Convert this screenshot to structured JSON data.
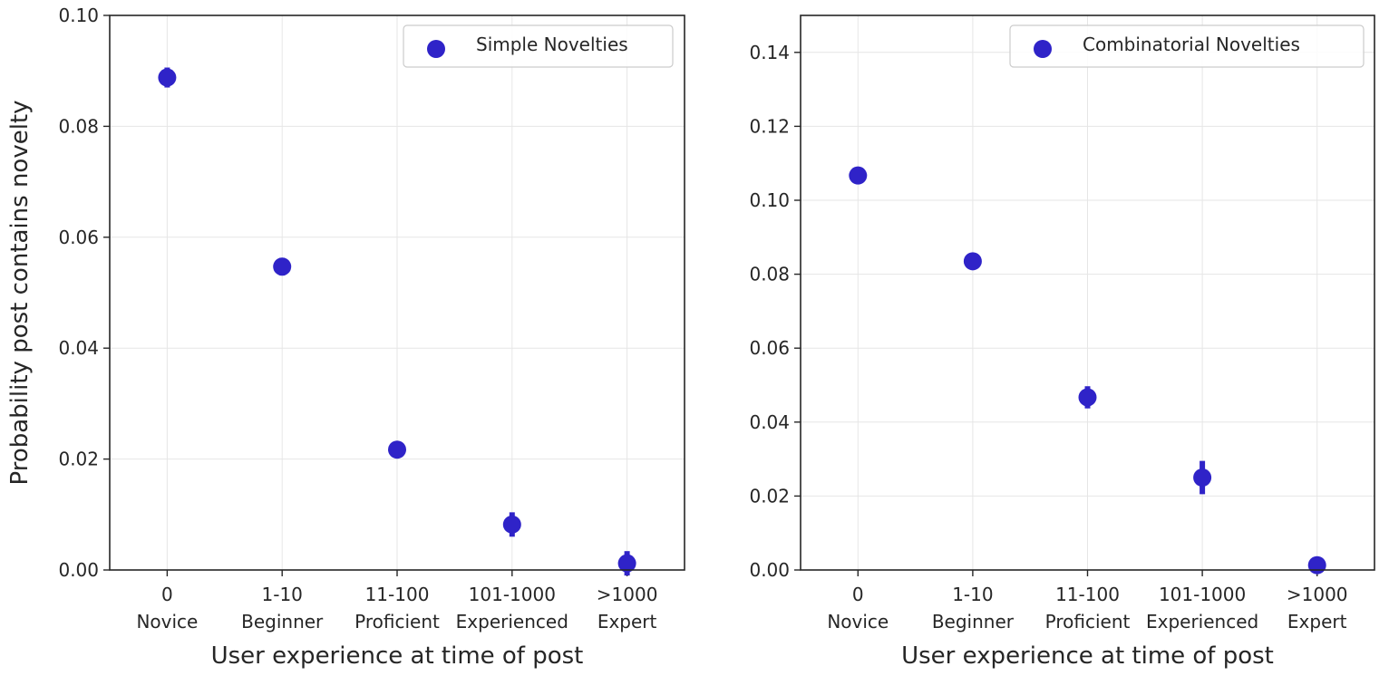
{
  "chart_data": [
    {
      "type": "scatter",
      "title": "",
      "xlabel": "User experience at time of post",
      "ylabel": "Probability post contains novelty",
      "categories": [
        {
          "range": "0",
          "level": "Novice"
        },
        {
          "range": "1-10",
          "level": "Beginner"
        },
        {
          "range": "11-100",
          "level": "Proficient"
        },
        {
          "range": "101-1000",
          "level": "Experienced"
        },
        {
          "range": ">1000",
          "level": "Expert"
        }
      ],
      "ylim": [
        0,
        0.1
      ],
      "yticks": [
        "0.00",
        "0.02",
        "0.04",
        "0.06",
        "0.08",
        "0.10"
      ],
      "grid": true,
      "legend_position": "top-right",
      "series": [
        {
          "name": "Simple Novelties",
          "color": "#2f23c8",
          "values": [
            0.0888,
            0.0547,
            0.0217,
            0.0082,
            0.0012
          ],
          "error": [
            0.0018,
            0.0016,
            0.0014,
            0.0022,
            0.0022
          ]
        }
      ]
    },
    {
      "type": "scatter",
      "title": "",
      "xlabel": "User experience at time of post",
      "ylabel": "",
      "categories": [
        {
          "range": "0",
          "level": "Novice"
        },
        {
          "range": "1-10",
          "level": "Beginner"
        },
        {
          "range": "11-100",
          "level": "Proficient"
        },
        {
          "range": "101-1000",
          "level": "Experienced"
        },
        {
          "range": ">1000",
          "level": "Expert"
        }
      ],
      "ylim": [
        0,
        0.15
      ],
      "yticks": [
        "0.00",
        "0.02",
        "0.04",
        "0.06",
        "0.08",
        "0.10",
        "0.12",
        "0.14"
      ],
      "grid": true,
      "legend_position": "top-right",
      "series": [
        {
          "name": "Combinatorial Novelties",
          "color": "#2f23c8",
          "values": [
            0.1067,
            0.0835,
            0.0467,
            0.025,
            0.0013
          ],
          "error": [
            0.0018,
            0.0022,
            0.003,
            0.0045,
            0.0022
          ]
        }
      ]
    }
  ]
}
